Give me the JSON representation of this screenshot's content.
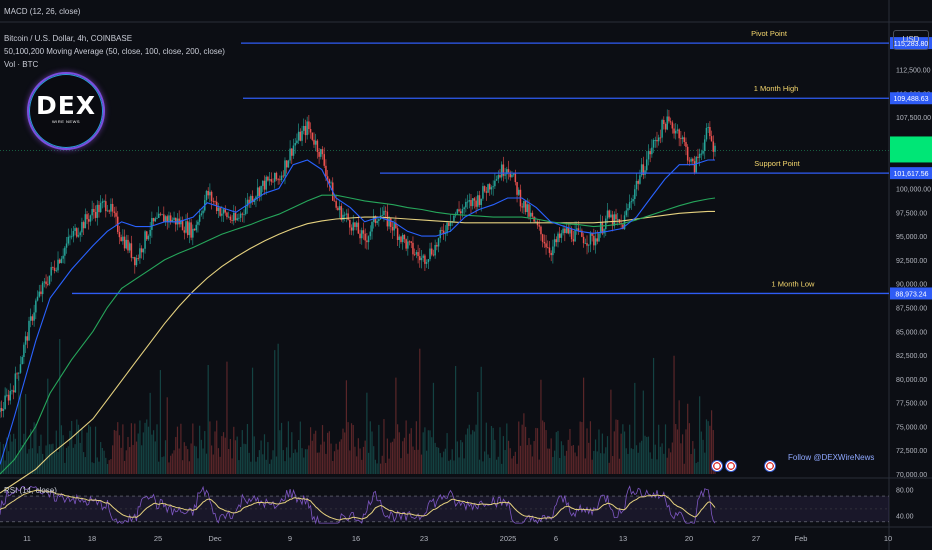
{
  "header": {
    "macd": "MACD (12, 26, close)",
    "symbol": "Bitcoin / U.S. Dollar, 4h, COINBASE",
    "ma": "50,100,200 Moving Average (50, close, 100, close, 200, close)",
    "vol": "Vol · BTC"
  },
  "logo": {
    "text": "DEX",
    "sub": "WIRE NEWS"
  },
  "currency": "USD",
  "follow": "Follow @DEXWireNews",
  "rsi_label": "RSI (14, close)",
  "colors": {
    "background": "#0c0e14",
    "bull": "#26a69a",
    "bear": "#ef5350",
    "level_line": "#2f5cf5",
    "annotation": "#f5d76e",
    "ma50": "#2962ff",
    "ma100": "#26a65b",
    "ma200": "#e5d17f",
    "rsi": "#7e57c2",
    "rsi_ma": "#e5d17f",
    "price_tag": "#00e676"
  },
  "chart_data": {
    "type": "candlestick",
    "ylim": [
      70000,
      117500
    ],
    "y_ticks": [
      "112,500.00",
      "110,000.00",
      "107,500.00",
      "105,000.00",
      "100,000.00",
      "97,500.00",
      "95,000.00",
      "92,500.00",
      "90,000.00",
      "87,500.00",
      "85,000.00",
      "82,500.00",
      "80,000.00",
      "77,500.00",
      "75,000.00",
      "72,500.00",
      "70,000.00"
    ],
    "y_tick_values": [
      112500,
      110000,
      107500,
      105000,
      100000,
      97500,
      95000,
      92500,
      90000,
      87500,
      85000,
      82500,
      80000,
      77500,
      75000,
      72500,
      70000
    ],
    "x_ticks": [
      "11",
      "18",
      "25",
      "Dec",
      "9",
      "16",
      "23",
      "2025",
      "6",
      "13",
      "20",
      "27",
      "Feb",
      "10"
    ],
    "levels": [
      {
        "label": "Pivot Point",
        "value": 115283.8,
        "tag": "115,283.80"
      },
      {
        "label": "1 Month High",
        "value": 109488.63,
        "tag": "109,488.63"
      },
      {
        "label": "Support Point",
        "value": 101617.56,
        "tag": "101,617.56"
      },
      {
        "label": "1 Month Low",
        "value": 88973.24,
        "tag": "88,973.24"
      }
    ],
    "last_price": 104000,
    "price_path_x": [
      0,
      0.02,
      0.05,
      0.07,
      0.1,
      0.13,
      0.15,
      0.17,
      0.19,
      0.21,
      0.23,
      0.25,
      0.27,
      0.29,
      0.31,
      0.33,
      0.35,
      0.37,
      0.39,
      0.41,
      0.43,
      0.45,
      0.47,
      0.49,
      0.51,
      0.53,
      0.55,
      0.57,
      0.59,
      0.61,
      0.63,
      0.65,
      0.67,
      0.69,
      0.71,
      0.73,
      0.75,
      0.77,
      0.79,
      0.81,
      0.83,
      0.85,
      0.87,
      0.89,
      0.91,
      0.93,
      0.95,
      0.97,
      0.99,
      1
    ],
    "price_path_y": [
      76500,
      79500,
      88000,
      91000,
      95000,
      97500,
      98500,
      95000,
      92500,
      96000,
      97000,
      96500,
      95500,
      99500,
      97500,
      96500,
      99000,
      100500,
      101000,
      104500,
      106500,
      103500,
      98000,
      96500,
      94500,
      97500,
      96000,
      94000,
      92500,
      94000,
      97000,
      98000,
      99000,
      101000,
      102500,
      98500,
      96000,
      93500,
      95500,
      95000,
      94500,
      97000,
      96000,
      100500,
      104000,
      107000,
      106000,
      102000,
      106000,
      104000
    ],
    "ma50_y": [
      71000,
      76000,
      84000,
      88500,
      91500,
      94000,
      95500,
      96500,
      96000,
      96000,
      96500,
      96500,
      97000,
      98500,
      98000,
      97500,
      98500,
      99500,
      100000,
      102500,
      103000,
      102000,
      99000,
      98000,
      96500,
      97000,
      96500,
      95500,
      95000,
      95000,
      95500,
      97000,
      97800,
      98300,
      99000,
      99000,
      98000,
      96500,
      96000,
      95500,
      95300,
      95500,
      95800,
      97000,
      99000,
      101000,
      102500,
      102500,
      103000,
      103000
    ],
    "ma100_y": [
      70000,
      71500,
      75000,
      78500,
      82000,
      85000,
      87500,
      89500,
      90500,
      91500,
      92500,
      93200,
      93800,
      94500,
      95200,
      95700,
      96200,
      96800,
      97300,
      98000,
      98700,
      99300,
      99300,
      99000,
      98700,
      98500,
      98300,
      98000,
      97800,
      97500,
      97300,
      97200,
      97100,
      97000,
      97000,
      97000,
      96800,
      96500,
      96300,
      96200,
      96000,
      96100,
      96300,
      96700,
      97200,
      97700,
      98200,
      98600,
      98900,
      99000
    ],
    "ma200_y": [
      68000,
      69000,
      70500,
      72000,
      73800,
      75800,
      77800,
      79800,
      81800,
      83800,
      85800,
      87600,
      89200,
      90600,
      91800,
      92800,
      93700,
      94500,
      95200,
      95800,
      96300,
      96600,
      96800,
      96900,
      97000,
      97000,
      96900,
      96800,
      96700,
      96600,
      96500,
      96400,
      96400,
      96400,
      96400,
      96400,
      96400,
      96400,
      96400,
      96400,
      96400,
      96500,
      96600,
      96800,
      97000,
      97200,
      97400,
      97500,
      97600,
      97600
    ],
    "rsi_ticks": [
      "80.00",
      "40.00"
    ],
    "rsi_tick_values": [
      80,
      40
    ],
    "rsi_ylim": [
      25,
      95
    ]
  }
}
